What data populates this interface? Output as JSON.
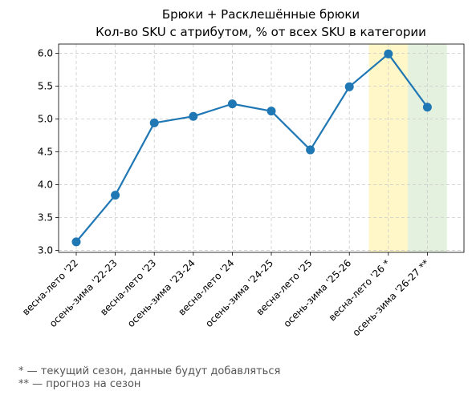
{
  "chart_data": {
    "type": "line",
    "title": "Брюки + Расклешённые брюки",
    "subtitle": "Кол-во SKU с атрибутом, % от всех SKU в категории",
    "xlabel": "",
    "ylabel": "",
    "categories": [
      "весна-лето '22",
      "осень-зима '22-23",
      "весна-лето '23",
      "осень-зима '23-24",
      "весна-лето '24",
      "осень-зима '24-25",
      "весна-лето '25",
      "осень-зима '25-26",
      "весна-лето '26 *",
      "осень-зима '26-27 **"
    ],
    "series": [
      {
        "values": [
          3.13,
          3.84,
          4.94,
          5.04,
          5.23,
          5.12,
          4.53,
          5.49,
          5.99,
          5.18
        ]
      }
    ],
    "ylim": [
      2.97,
      6.14
    ],
    "yticks": [
      "3.0",
      "3.5",
      "4.0",
      "4.5",
      "5.0",
      "5.5",
      "6.0"
    ],
    "grid": true,
    "highlights": [
      {
        "category_index": 8,
        "color": "#fff7c8"
      },
      {
        "category_index": 9,
        "color": "#e4f1de"
      }
    ],
    "line_color": "#1f77b4"
  },
  "footnotes": [
    "* — текущий сезон, данные будут добавляться",
    "** — прогноз на сезон"
  ]
}
